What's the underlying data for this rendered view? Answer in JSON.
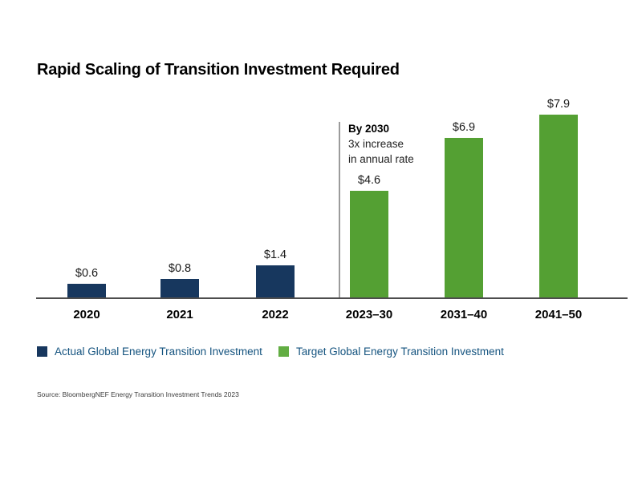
{
  "page": {
    "title": "Rapid Scaling of Transition Investment Required",
    "source": "Source: BloombergNEF Energy Transition Investment Trends 2023"
  },
  "annotation": {
    "line1": "By 2030",
    "line2": "3x increase",
    "line3": "in annual rate"
  },
  "legend": [
    {
      "label": "Actual Global Energy Transition Investment",
      "color": "#17375e"
    },
    {
      "label": "Target Global Energy Transition Investment",
      "color": "#62ad43"
    }
  ],
  "colors": {
    "actual_bar": "#17375e",
    "target_bar": "#54a033",
    "axis": "#4d4d4d",
    "separator": "#9b9b9b",
    "legend_text": "#14537f"
  },
  "chart_data": {
    "type": "bar",
    "title": "Rapid Scaling of Transition Investment Required",
    "categories": [
      "2020",
      "2021",
      "2022",
      "2023–30",
      "2031–40",
      "2041–50"
    ],
    "values": [
      0.6,
      0.8,
      1.4,
      4.6,
      6.9,
      7.9
    ],
    "value_labels": [
      "$0.6",
      "$0.8",
      "$1.4",
      "$4.6",
      "$6.9",
      "$7.9"
    ],
    "bar_colors": [
      "#17375e",
      "#17375e",
      "#17375e",
      "#54a033",
      "#54a033",
      "#54a033"
    ],
    "series": [
      {
        "name": "Actual Global Energy Transition Investment",
        "color": "#17375e",
        "categories": [
          "2020",
          "2021",
          "2022"
        ],
        "values": [
          0.6,
          0.8,
          1.4
        ]
      },
      {
        "name": "Target Global Energy Transition Investment",
        "color": "#54a033",
        "categories": [
          "2023–30",
          "2031–40",
          "2041–50"
        ],
        "values": [
          4.6,
          6.9,
          7.9
        ]
      }
    ],
    "annotation": "By 2030 3x increase in annual rate",
    "xlabel": "",
    "ylabel": "",
    "ylim": [
      0,
      8.5
    ],
    "grid": false,
    "legend_position": "bottom"
  }
}
